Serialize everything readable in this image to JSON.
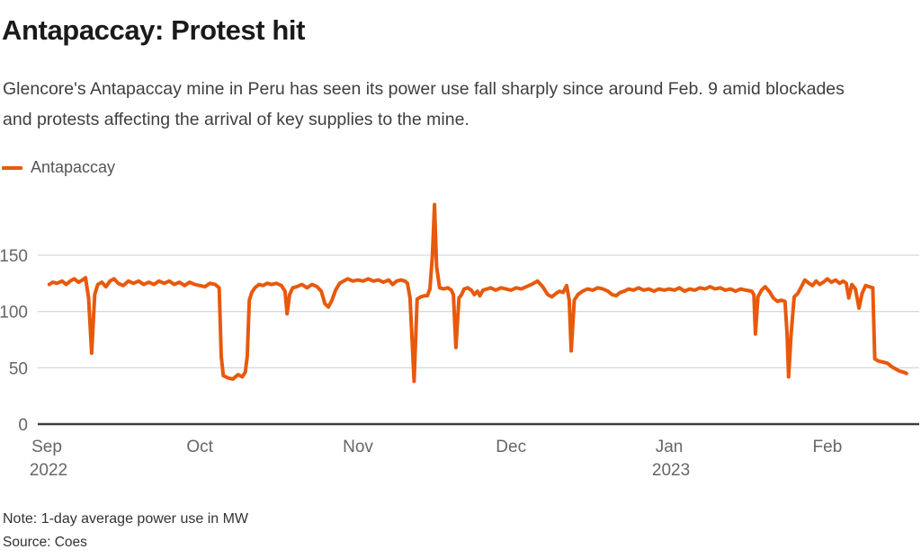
{
  "header": {
    "title": "Antapaccay: Protest hit",
    "subtitle": "Glencore's Antapaccay mine in Peru has seen its power use fall sharply since around Feb. 9 amid blockades and protests affecting the arrival of key supplies to the mine."
  },
  "legend": {
    "label": "Antapaccay",
    "color": "#E8590C"
  },
  "footer": {
    "note": "Note: 1-day average power use in MW",
    "source": "Source: Coes"
  },
  "colors": {
    "accent": "#E8590C",
    "grid": "#d9d9d9",
    "axis": "#3d3d3d",
    "tick_text": "#666666",
    "title_text": "#1a1a1a",
    "body_text": "#3f3f3f"
  },
  "chart_data": {
    "type": "line",
    "title": "Antapaccay: Protest hit",
    "xlabel": "",
    "ylabel": "1-day average power use in MW",
    "x_unit": "days since Sep 1, 2022",
    "xlim": [
      0,
      171
    ],
    "ylim": [
      0,
      200
    ],
    "grid": "horizontal",
    "legend_position": "top-left",
    "y_ticks": [
      0,
      50,
      100,
      150
    ],
    "x_ticks": [
      {
        "day": 0,
        "label": "Sep",
        "year": "2022"
      },
      {
        "day": 30,
        "label": "Oct"
      },
      {
        "day": 61,
        "label": "Nov"
      },
      {
        "day": 91,
        "label": "Dec"
      },
      {
        "day": 122,
        "label": "Jan",
        "year": "2023"
      },
      {
        "day": 153,
        "label": "Feb"
      }
    ],
    "series": [
      {
        "name": "Antapaccay",
        "color": "#E8590C",
        "points": [
          [
            0.5,
            124
          ],
          [
            1.2,
            126
          ],
          [
            2,
            125
          ],
          [
            3,
            127
          ],
          [
            3.8,
            124
          ],
          [
            4.6,
            127
          ],
          [
            5.4,
            129
          ],
          [
            6.2,
            126
          ],
          [
            7,
            128
          ],
          [
            7.6,
            130
          ],
          [
            8.2,
            112
          ],
          [
            8.8,
            63
          ],
          [
            9.4,
            115
          ],
          [
            10,
            124
          ],
          [
            10.8,
            126
          ],
          [
            11.6,
            122
          ],
          [
            12.4,
            127
          ],
          [
            13.2,
            129
          ],
          [
            14,
            125
          ],
          [
            15,
            123
          ],
          [
            16,
            127
          ],
          [
            17,
            125
          ],
          [
            18,
            127
          ],
          [
            19,
            124
          ],
          [
            20,
            126
          ],
          [
            21,
            124
          ],
          [
            22,
            127
          ],
          [
            23,
            125
          ],
          [
            24,
            127
          ],
          [
            25,
            124
          ],
          [
            26,
            126
          ],
          [
            27,
            123
          ],
          [
            28,
            126
          ],
          [
            29,
            124
          ],
          [
            30,
            123
          ],
          [
            31,
            122
          ],
          [
            32,
            125
          ],
          [
            33,
            124
          ],
          [
            33.8,
            121
          ],
          [
            34.2,
            60
          ],
          [
            34.6,
            43
          ],
          [
            35.5,
            41
          ],
          [
            36.5,
            40
          ],
          [
            37.5,
            44
          ],
          [
            38.3,
            42
          ],
          [
            38.9,
            46
          ],
          [
            39.3,
            60
          ],
          [
            39.7,
            110
          ],
          [
            40.2,
            117
          ],
          [
            40.8,
            121
          ],
          [
            41.6,
            124
          ],
          [
            42.4,
            123
          ],
          [
            43.2,
            125
          ],
          [
            44,
            124
          ],
          [
            45,
            125
          ],
          [
            46,
            123
          ],
          [
            46.7,
            118
          ],
          [
            47.1,
            98
          ],
          [
            47.6,
            115
          ],
          [
            48.2,
            121
          ],
          [
            49,
            122
          ],
          [
            50,
            124
          ],
          [
            51,
            121
          ],
          [
            52,
            124
          ],
          [
            53,
            122
          ],
          [
            53.8,
            118
          ],
          [
            54.5,
            107
          ],
          [
            55.2,
            104
          ],
          [
            55.9,
            110
          ],
          [
            56.6,
            119
          ],
          [
            57.4,
            125
          ],
          [
            58.2,
            127
          ],
          [
            59,
            129
          ],
          [
            60,
            127
          ],
          [
            61,
            128
          ],
          [
            62,
            127
          ],
          [
            63,
            129
          ],
          [
            64,
            127
          ],
          [
            65,
            128
          ],
          [
            66,
            126
          ],
          [
            67,
            128
          ],
          [
            67.8,
            124
          ],
          [
            68.6,
            127
          ],
          [
            69.4,
            128
          ],
          [
            70.2,
            127
          ],
          [
            70.7,
            125
          ],
          [
            71.2,
            112
          ],
          [
            72,
            38
          ],
          [
            72.6,
            111
          ],
          [
            73.3,
            113
          ],
          [
            74,
            114
          ],
          [
            74.6,
            114
          ],
          [
            75.1,
            120
          ],
          [
            75.6,
            150
          ],
          [
            76,
            195
          ],
          [
            76.4,
            140
          ],
          [
            77,
            121
          ],
          [
            77.8,
            120
          ],
          [
            78.6,
            121
          ],
          [
            79.3,
            119
          ],
          [
            79.7,
            115
          ],
          [
            80.2,
            68
          ],
          [
            80.8,
            112
          ],
          [
            81.3,
            115
          ],
          [
            81.8,
            120
          ],
          [
            82.5,
            121
          ],
          [
            83.2,
            119
          ],
          [
            83.8,
            115
          ],
          [
            84.4,
            118
          ],
          [
            84.9,
            114
          ],
          [
            85.5,
            119
          ],
          [
            86.3,
            120
          ],
          [
            87,
            121
          ],
          [
            88,
            119
          ],
          [
            89,
            121
          ],
          [
            90,
            120
          ],
          [
            91,
            119
          ],
          [
            92,
            121
          ],
          [
            93,
            120
          ],
          [
            94,
            122
          ],
          [
            95,
            124
          ],
          [
            96.2,
            127
          ],
          [
            97.2,
            122
          ],
          [
            98.2,
            115
          ],
          [
            99,
            113
          ],
          [
            99.8,
            116
          ],
          [
            100.5,
            118
          ],
          [
            101.2,
            117
          ],
          [
            101.9,
            123
          ],
          [
            102.4,
            110
          ],
          [
            102.8,
            65
          ],
          [
            103.4,
            110
          ],
          [
            104.1,
            115
          ],
          [
            105,
            118
          ],
          [
            106,
            120
          ],
          [
            107,
            119
          ],
          [
            108,
            121
          ],
          [
            109,
            120
          ],
          [
            110,
            118
          ],
          [
            110.8,
            115
          ],
          [
            111.6,
            114
          ],
          [
            112.4,
            117
          ],
          [
            113.2,
            118
          ],
          [
            114,
            120
          ],
          [
            115,
            119
          ],
          [
            116,
            121
          ],
          [
            117,
            119
          ],
          [
            118,
            120
          ],
          [
            119,
            118
          ],
          [
            120,
            120
          ],
          [
            121,
            119
          ],
          [
            122,
            120
          ],
          [
            123,
            119
          ],
          [
            124,
            121
          ],
          [
            125,
            118
          ],
          [
            126,
            120
          ],
          [
            127,
            119
          ],
          [
            128,
            121
          ],
          [
            129,
            120
          ],
          [
            130,
            122
          ],
          [
            131,
            120
          ],
          [
            132,
            121
          ],
          [
            133,
            119
          ],
          [
            134,
            120
          ],
          [
            135,
            118
          ],
          [
            136,
            120
          ],
          [
            137,
            119
          ],
          [
            138.2,
            118
          ],
          [
            138.6,
            115
          ],
          [
            138.9,
            80
          ],
          [
            139.4,
            113
          ],
          [
            140.1,
            119
          ],
          [
            140.8,
            122
          ],
          [
            141.6,
            118
          ],
          [
            142.4,
            112
          ],
          [
            143.2,
            109
          ],
          [
            144,
            110
          ],
          [
            144.7,
            109
          ],
          [
            145.1,
            80
          ],
          [
            145.4,
            42
          ],
          [
            145.9,
            80
          ],
          [
            146.5,
            113
          ],
          [
            147.2,
            116
          ],
          [
            147.9,
            122
          ],
          [
            148.6,
            128
          ],
          [
            149.4,
            125
          ],
          [
            150.1,
            123
          ],
          [
            150.8,
            127
          ],
          [
            151.5,
            124
          ],
          [
            152.2,
            126
          ],
          [
            153,
            129
          ],
          [
            153.8,
            126
          ],
          [
            154.6,
            128
          ],
          [
            155.4,
            125
          ],
          [
            156.1,
            127
          ],
          [
            156.7,
            125
          ],
          [
            157.2,
            112
          ],
          [
            157.8,
            124
          ],
          [
            158.5,
            120
          ],
          [
            159.2,
            103
          ],
          [
            159.8,
            116
          ],
          [
            160.5,
            123
          ],
          [
            161.2,
            122
          ],
          [
            161.9,
            121
          ],
          [
            162.3,
            58
          ],
          [
            163,
            56
          ],
          [
            164,
            55
          ],
          [
            164.8,
            54
          ],
          [
            165.6,
            51
          ],
          [
            166.4,
            49
          ],
          [
            167.2,
            47
          ],
          [
            168,
            46
          ],
          [
            168.5,
            45
          ]
        ]
      }
    ]
  }
}
